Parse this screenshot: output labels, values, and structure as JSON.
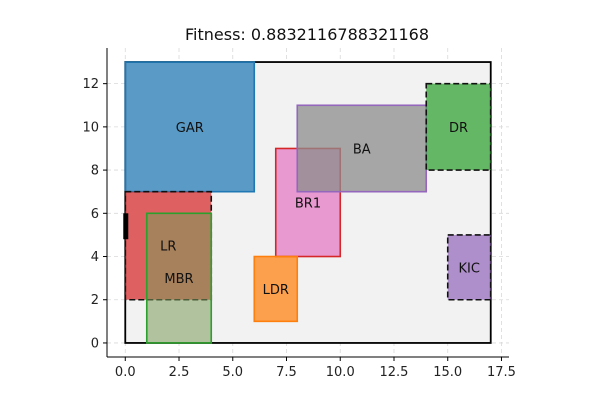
{
  "chart_data": {
    "type": "floorplan",
    "title": "Fitness: 0.8832116788321168",
    "xlim": [
      -0.85,
      17.85
    ],
    "ylim": [
      -0.65,
      13.65
    ],
    "x_ticks": [
      0.0,
      2.5,
      5.0,
      7.5,
      10.0,
      12.5,
      15.0,
      17.5
    ],
    "x_tick_labels": [
      "0.0",
      "2.5",
      "5.0",
      "7.5",
      "10.0",
      "12.5",
      "15.0",
      "17.5"
    ],
    "y_ticks": [
      0,
      2,
      4,
      6,
      8,
      10,
      12
    ],
    "y_tick_labels": [
      "0",
      "2",
      "4",
      "6",
      "8",
      "10",
      "12"
    ],
    "grid": true,
    "boundary": {
      "x0": 0,
      "y0": 0,
      "x1": 17,
      "y1": 13
    },
    "door": {
      "x0": 0,
      "y0": 4.8,
      "x1": 0.2,
      "y1": 6.0
    },
    "rooms": [
      {
        "name": "GAR",
        "x0": 0,
        "y0": 7,
        "x1": 6,
        "y1": 13,
        "fill": "#1f77b4",
        "stroke": "#1f77b4",
        "dashed": false,
        "alpha": 0.72,
        "label_x": 3.0,
        "label_y": 10.0
      },
      {
        "name": "LR",
        "x0": 0,
        "y0": 2,
        "x1": 4,
        "y1": 7,
        "fill": "#d62728",
        "stroke": "#111111",
        "dashed": true,
        "alpha": 0.72,
        "label_x": 2.0,
        "label_y": 4.5
      },
      {
        "name": "MBR",
        "x0": 1,
        "y0": 0,
        "x1": 4,
        "y1": 6,
        "fill": "#7a9a5a",
        "stroke": "#2ca02c",
        "dashed": false,
        "alpha": 0.55,
        "label_x": 2.5,
        "label_y": 3.0
      },
      {
        "name": "BR1",
        "x0": 7,
        "y0": 4,
        "x1": 10,
        "y1": 9,
        "fill": "#e377c2",
        "stroke": "#d62728",
        "dashed": false,
        "alpha": 0.72,
        "label_x": 8.5,
        "label_y": 6.5
      },
      {
        "name": "BA",
        "x0": 8,
        "y0": 7,
        "x1": 14,
        "y1": 11,
        "fill": "#8c8c8c",
        "stroke": "#9467bd",
        "dashed": false,
        "alpha": 0.75,
        "label_x": 11.0,
        "label_y": 9.0
      },
      {
        "name": "DR",
        "x0": 14,
        "y0": 8,
        "x1": 17,
        "y1": 12,
        "fill": "#2ca02c",
        "stroke": "#111111",
        "dashed": true,
        "alpha": 0.72,
        "label_x": 15.5,
        "label_y": 10.0
      },
      {
        "name": "LDR",
        "x0": 6,
        "y0": 1,
        "x1": 8,
        "y1": 4,
        "fill": "#ff7f0e",
        "stroke": "#ff7f0e",
        "dashed": false,
        "alpha": 0.72,
        "label_x": 7.0,
        "label_y": 2.5
      },
      {
        "name": "KIC",
        "x0": 15,
        "y0": 2,
        "x1": 17,
        "y1": 5,
        "fill": "#9467bd",
        "stroke": "#111111",
        "dashed": true,
        "alpha": 0.72,
        "label_x": 16.0,
        "label_y": 3.5
      }
    ]
  }
}
